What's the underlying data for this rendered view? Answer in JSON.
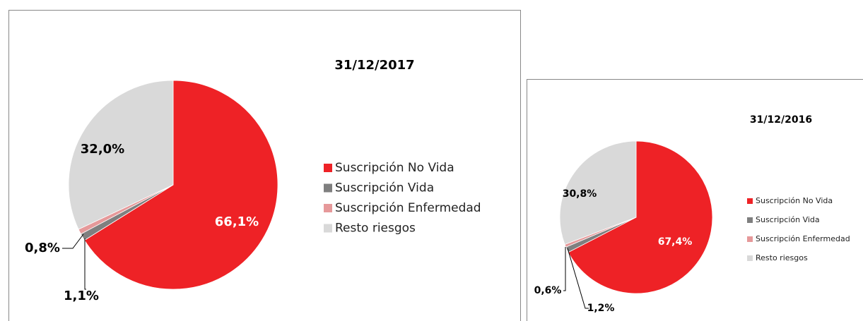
{
  "chart_data": [
    {
      "type": "pie",
      "title": "31/12/2017",
      "categories": [
        "Suscripción No Vida",
        "Suscripción Vida",
        "Suscripción Enfermedad",
        "Resto riesgos"
      ],
      "values": [
        66.1,
        1.1,
        0.8,
        32.0
      ],
      "value_labels": [
        "66,1%",
        "1,1%",
        "0,8%",
        "32,0%"
      ],
      "colors": [
        "#ee2226",
        "#7f7f7f",
        "#e6999a",
        "#d9d9d9"
      ]
    },
    {
      "type": "pie",
      "title": "31/12/2016",
      "categories": [
        "Suscripción No Vida",
        "Suscripción Vida",
        "Suscripción Enfermedad",
        "Resto riesgos"
      ],
      "values": [
        67.4,
        1.2,
        0.6,
        30.8
      ],
      "value_labels": [
        "67,4%",
        "1,2%",
        "0,6%",
        "30,8%"
      ],
      "colors": [
        "#ee2226",
        "#7f7f7f",
        "#e6999a",
        "#d9d9d9"
      ]
    }
  ]
}
